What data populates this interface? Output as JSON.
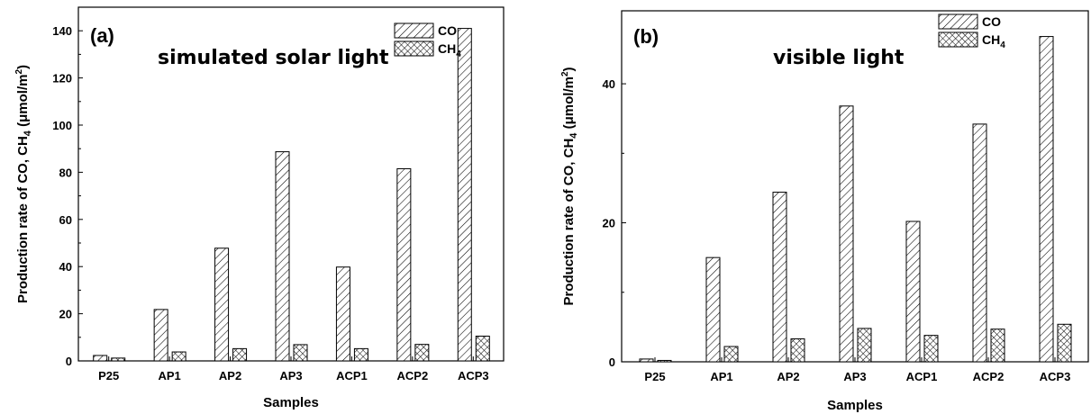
{
  "chart_data": [
    {
      "type": "bar",
      "panel_label": "(a)",
      "annotation": "simulated solar light",
      "categories": [
        "P25",
        "AP1",
        "AP2",
        "AP3",
        "ACP1",
        "ACP2",
        "ACP3"
      ],
      "series": [
        {
          "name": "CO",
          "values": [
            2.3,
            21.8,
            47.8,
            88.7,
            39.8,
            81.5,
            141.0
          ],
          "pattern": "diagonal-hatch"
        },
        {
          "name": "CH4",
          "name_base": "CH",
          "name_sub": "4",
          "values": [
            1.2,
            3.8,
            5.2,
            6.9,
            5.2,
            7.0,
            10.5
          ],
          "pattern": "cross-hatch"
        }
      ],
      "xlabel": "Samples",
      "ylabel_prefix": "Production rate of CO, CH",
      "ylabel_sub": "4",
      "ylabel_units": " (μmol/m",
      "ylabel_sup": "2",
      "ylabel_close": ")",
      "ylim": [
        0,
        150
      ],
      "yticks": [
        0,
        20,
        40,
        60,
        80,
        100,
        120,
        140
      ],
      "legend_position": "top-right",
      "grid": false
    },
    {
      "type": "bar",
      "panel_label": "(b)",
      "annotation": "visible light",
      "categories": [
        "P25",
        "AP1",
        "AP2",
        "AP3",
        "ACP1",
        "ACP2",
        "ACP3"
      ],
      "series": [
        {
          "name": "CO",
          "values": [
            0.4,
            15.0,
            24.4,
            36.8,
            20.2,
            34.2,
            46.8
          ],
          "pattern": "diagonal-hatch"
        },
        {
          "name": "CH4",
          "name_base": "CH",
          "name_sub": "4",
          "values": [
            0.2,
            2.2,
            3.3,
            4.8,
            3.8,
            4.7,
            5.4
          ],
          "pattern": "cross-hatch"
        }
      ],
      "xlabel": "Samples",
      "ylabel_prefix": "Production rate of CO, CH",
      "ylabel_sub": "4",
      "ylabel_units": " (μmol/m",
      "ylabel_sup": "2",
      "ylabel_close": ")",
      "ylim": [
        0,
        50.5
      ],
      "yticks": [
        0,
        20,
        40
      ],
      "legend_position": "top-right",
      "grid": false
    }
  ]
}
